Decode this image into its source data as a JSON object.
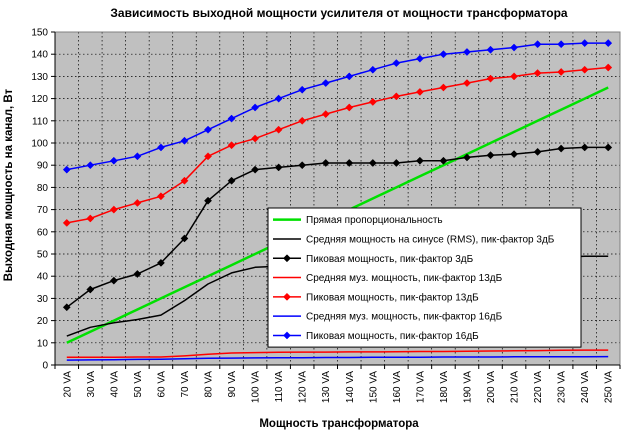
{
  "chart_data": {
    "type": "line",
    "title": "Зависимость выходной мощности усилителя от мощности трансформатора",
    "xlabel": "Мощность трансформатора",
    "ylabel": "Выходная мощность на канал, Вт",
    "categories": [
      "20 VA",
      "30 VA",
      "40 VA",
      "50 VA",
      "60 VA",
      "70 VA",
      "80 VA",
      "90 VA",
      "100 VA",
      "110 VA",
      "120 VA",
      "130 VA",
      "140 VA",
      "150 VA",
      "160 VA",
      "170 VA",
      "180 VA",
      "190 VA",
      "200 VA",
      "210 VA",
      "220 VA",
      "230 VA",
      "240 VA",
      "250 VA"
    ],
    "ylim": [
      0,
      150
    ],
    "yticks": [
      0,
      10,
      20,
      30,
      40,
      50,
      60,
      70,
      80,
      90,
      100,
      110,
      120,
      130,
      140,
      150
    ],
    "grid": true,
    "plot_background": "#c0c0c0",
    "legend_position": "center-right",
    "series": [
      {
        "name": "Прямая пропорциональность",
        "color": "#00e000",
        "marker": "none",
        "width": 2.5,
        "values": [
          10,
          15,
          20,
          25,
          30,
          35,
          40,
          45,
          50,
          55,
          60,
          65,
          70,
          75,
          80,
          85,
          90,
          95,
          100,
          105,
          110,
          115,
          120,
          125
        ]
      },
      {
        "name": "Средняя мощность на синусе (RMS), пик-фактор 3дБ",
        "color": "#000000",
        "marker": "none",
        "width": 1.5,
        "values": [
          13,
          17,
          19,
          20.5,
          22.5,
          29,
          36.5,
          41.5,
          44,
          44.5,
          45,
          45.5,
          45.5,
          45.5,
          45.5,
          46,
          46,
          46.5,
          47,
          47.5,
          48,
          48.5,
          49,
          49
        ]
      },
      {
        "name": "Пиковая мощность, пик-фактор 3дБ",
        "color": "#000000",
        "marker": "diamond",
        "width": 1.5,
        "values": [
          26,
          34,
          38,
          41,
          46,
          57,
          74,
          83,
          88,
          89,
          90,
          91,
          91,
          91,
          91,
          92,
          92,
          93.5,
          94.5,
          95,
          96,
          97.5,
          98,
          98
        ]
      },
      {
        "name": "Средняя муз. мощность, пик-фактор 13дБ",
        "color": "#ff0000",
        "marker": "none",
        "width": 1.5,
        "values": [
          3.5,
          3.5,
          3.5,
          3.6,
          3.6,
          4.1,
          4.8,
          5.4,
          5.6,
          5.7,
          5.8,
          5.8,
          5.9,
          5.9,
          6,
          6.1,
          6.1,
          6.2,
          6.3,
          6.4,
          6.5,
          6.6,
          6.7,
          6.7
        ]
      },
      {
        "name": "Пиковая мощность, пик-фактор 13дБ",
        "color": "#ff0000",
        "marker": "diamond",
        "width": 1.5,
        "values": [
          64,
          66,
          70,
          73,
          76,
          83,
          94,
          99,
          102,
          106,
          110,
          113,
          116,
          118.5,
          121,
          123,
          125,
          127,
          129,
          130,
          131.5,
          132,
          133,
          134
        ]
      },
      {
        "name": "Средняя муз. мощность, пик-фактор 16дБ",
        "color": "#0000ff",
        "marker": "none",
        "width": 1.5,
        "values": [
          2.2,
          2.3,
          2.4,
          2.5,
          2.6,
          2.8,
          3,
          3.1,
          3.2,
          3.3,
          3.3,
          3.4,
          3.4,
          3.5,
          3.5,
          3.5,
          3.6,
          3.6,
          3.6,
          3.7,
          3.7,
          3.7,
          3.7,
          3.8
        ]
      },
      {
        "name": "Пиковая мощность, пик-фактор 16дБ",
        "color": "#0000ff",
        "marker": "diamond",
        "width": 1.5,
        "values": [
          88,
          90,
          92,
          94,
          98,
          101,
          106,
          111,
          116,
          120,
          124,
          127,
          130,
          133,
          136,
          138,
          140,
          141,
          142,
          143,
          144.5,
          144.5,
          145,
          145
        ]
      }
    ]
  }
}
